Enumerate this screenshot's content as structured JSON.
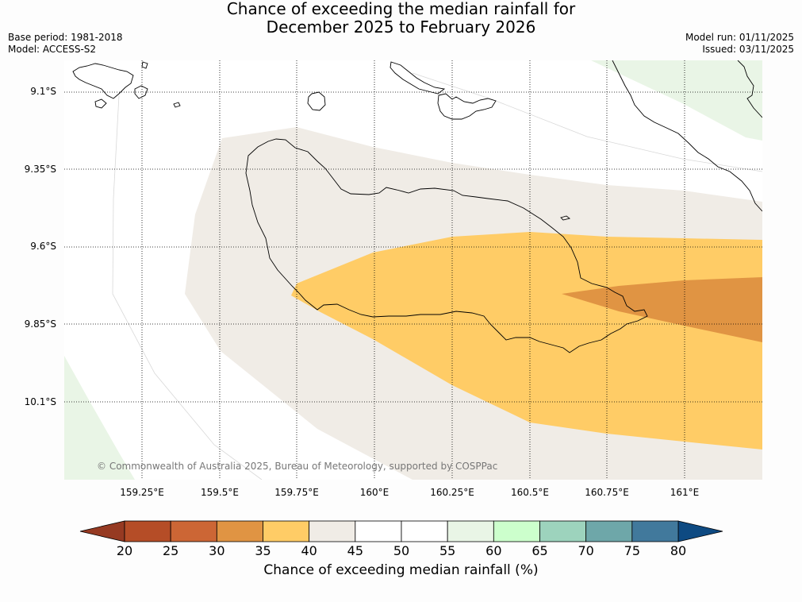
{
  "title": {
    "line1": "Chance of exceeding the median rainfall for",
    "line2": "December 2025 to February 2026"
  },
  "meta": {
    "base_period": "Base period: 1981-2018",
    "model": "Model: ACCESS-S2",
    "model_run": "Model run: 01/11/2025",
    "issued": "Issued: 03/11/2025"
  },
  "copyright": "© Commonwealth of Australia 2025, Bureau of Meteorology, supported by COSPPac",
  "lat_labels": [
    "9.1°S",
    "9.35°S",
    "9.6°S",
    "9.85°S",
    "10.1°S"
  ],
  "lon_labels": [
    "159.25°E",
    "159.5°E",
    "159.75°E",
    "160°E",
    "160.25°E",
    "160.5°E",
    "160.75°E",
    "161°E"
  ],
  "colorbar": {
    "label": "Chance of exceeding median rainfall (%)",
    "ticks": [
      "20",
      "25",
      "30",
      "35",
      "40",
      "45",
      "50",
      "55",
      "60",
      "65",
      "70",
      "75",
      "80"
    ],
    "under_color": "#963a22",
    "over_color": "#0e4a82",
    "colors": [
      "#b54d27",
      "#cc6635",
      "#e09443",
      "#ffcc66",
      "#f0ece6",
      "#ffffff",
      "#ffffff",
      "#e9f5e6",
      "#ccffcc",
      "#9dd3bd",
      "#6ea7a9",
      "#41799c"
    ]
  }
}
